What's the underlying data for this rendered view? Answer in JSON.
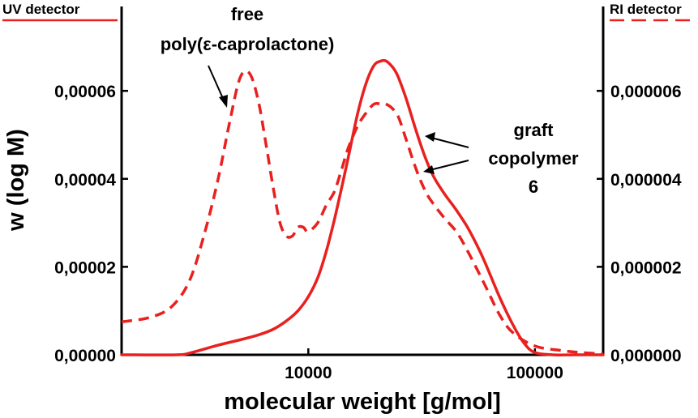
{
  "chart_data": {
    "type": "line",
    "xscale": "log",
    "xlim": [
      1500,
      200000
    ],
    "ylim_left": [
      0,
      7.2e-05
    ],
    "ylim_right": [
      0,
      7.2e-06
    ],
    "x_ticks": [
      {
        "value": 10000,
        "label": "10000"
      },
      {
        "value": 100000,
        "label": "100000"
      }
    ],
    "y_ticks_left": [
      {
        "value": 0,
        "label": "0,00000"
      },
      {
        "value": 2e-05,
        "label": "0,00002"
      },
      {
        "value": 4e-05,
        "label": "0,00004"
      },
      {
        "value": 6e-05,
        "label": "0,00006"
      }
    ],
    "y_ticks_right": [
      {
        "value": 0,
        "label": "0,000000"
      },
      {
        "value": 2e-06,
        "label": "0,000002"
      },
      {
        "value": 4e-06,
        "label": "0,000004"
      },
      {
        "value": 6e-06,
        "label": "0,000006"
      }
    ],
    "xlabel": "molecular weight [g/mol]",
    "ylabel": "w (log M)",
    "legend_left": "UV detector",
    "legend_right": "RI detector",
    "annotations": {
      "free_label": [
        "free",
        "poly(ε-caprolactone)"
      ],
      "graft_label": [
        "graft",
        "copolymer",
        "6"
      ]
    },
    "color": "#e8211f",
    "grid": false,
    "series": [
      {
        "detector": "UV",
        "style": "solid",
        "axis": "left",
        "x": [
          1500,
          2600,
          3000,
          4000,
          5000,
          6000,
          7000,
          8000,
          9000,
          10000,
          11000,
          12000,
          13000,
          14000,
          15000,
          16500,
          18000,
          19500,
          21000,
          22000,
          23000,
          24000,
          25000,
          27000,
          30000,
          33000,
          36000,
          40000,
          45000,
          50000,
          55000,
          60000,
          70000,
          80000,
          90000,
          100000,
          120000,
          150000,
          200000
        ],
        "y": [
          0,
          0,
          4e-07,
          2.2e-06,
          3.4e-06,
          4.5e-06,
          5.8e-06,
          7.7e-06,
          1e-05,
          1.32e-05,
          1.75e-05,
          2.35e-05,
          3.05e-05,
          3.78e-05,
          4.48e-05,
          5.48e-05,
          6.18e-05,
          6.58e-05,
          6.68e-05,
          6.68e-05,
          6.6e-05,
          6.48e-05,
          6.3e-05,
          5.83e-05,
          5.07e-05,
          4.45e-05,
          4.02e-05,
          3.65e-05,
          3.29e-05,
          2.93e-05,
          2.53e-05,
          2.12e-05,
          1.3e-05,
          6.8e-06,
          2.5e-06,
          5e-07,
          0,
          0,
          0
        ]
      },
      {
        "detector": "RI",
        "style": "dashed",
        "axis": "right",
        "x": [
          1500,
          2000,
          2500,
          3000,
          3500,
          4000,
          4500,
          5000,
          5500,
          6000,
          6500,
          7000,
          7500,
          8000,
          8500,
          9000,
          9500,
          10000,
          11000,
          12000,
          13000,
          14000,
          15000,
          16500,
          18000,
          19500,
          21000,
          22000,
          23500,
          25000,
          27000,
          30000,
          33000,
          36000,
          40000,
          45000,
          50000,
          60000,
          70000,
          80000,
          100000,
          130000,
          160000,
          200000
        ],
        "y": [
          7.5e-07,
          8.5e-07,
          1.1e-06,
          1.7e-06,
          2.8e-06,
          4e-06,
          5.3e-06,
          6.3e-06,
          6.4e-06,
          5.8e-06,
          4.8e-06,
          3.8e-06,
          3e-06,
          2.7e-06,
          2.7e-06,
          2.9e-06,
          2.9e-06,
          2.8e-06,
          3e-06,
          3.4e-06,
          3.7e-06,
          4.2e-06,
          4.7e-06,
          5.2e-06,
          5.5e-06,
          5.7e-06,
          5.7e-06,
          5.7e-06,
          5.6e-06,
          5.4e-06,
          4.9e-06,
          4.2e-06,
          3.7e-06,
          3.4e-06,
          3.1e-06,
          2.8e-06,
          2.4e-06,
          1.6e-06,
          9e-07,
          5e-07,
          2e-07,
          1e-07,
          5e-08,
          2e-08
        ]
      }
    ]
  }
}
